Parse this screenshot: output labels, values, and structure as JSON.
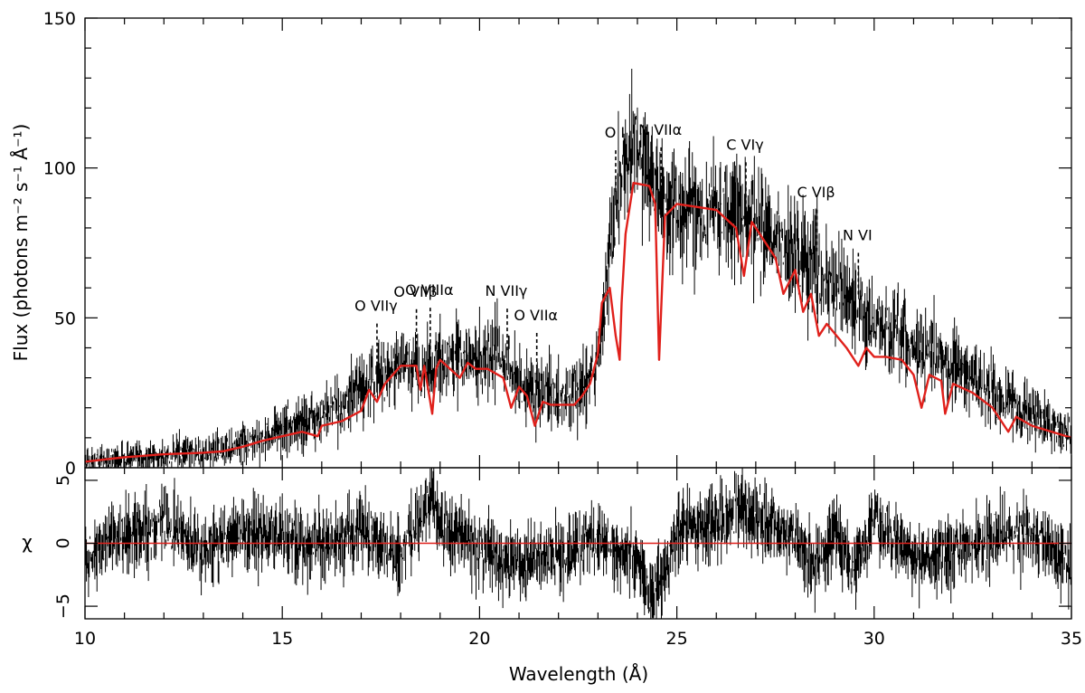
{
  "chart_data": {
    "type": "line",
    "panels": [
      {
        "name": "spectrum",
        "ylabel": "Flux (photons m⁻² s⁻¹ Å⁻¹)",
        "ylim": [
          0,
          150
        ],
        "yticks": [
          0,
          50,
          100,
          150
        ],
        "ytick_labels": [
          "0",
          "50",
          "100",
          "150"
        ],
        "series": [
          {
            "role": "data",
            "color": "#000000",
            "x": [
              10,
              10.5,
              11,
              11.5,
              12,
              12.5,
              13,
              13.5,
              14,
              14.5,
              15,
              15.5,
              16,
              16.5,
              17,
              17.5,
              18,
              18.5,
              19,
              19.5,
              20,
              20.5,
              21,
              21.5,
              22,
              22.5,
              23,
              23.3,
              23.6,
              24,
              24.3,
              24.6,
              25,
              25.5,
              26,
              26.5,
              27,
              27.5,
              28,
              28.5,
              29,
              29.5,
              30,
              30.5,
              31,
              31.5,
              32,
              32.5,
              33,
              33.5,
              34,
              34.5,
              35
            ],
            "values": [
              2,
              3,
              3,
              3.5,
              4,
              4.5,
              5,
              6,
              8,
              10,
              13,
              15,
              17,
              21,
              26,
              30,
              34,
              33,
              36,
              37,
              36,
              39,
              27,
              26,
              23,
              25,
              36,
              72,
              102,
              108,
              100,
              88,
              86,
              87,
              86,
              86,
              80,
              76,
              72,
              68,
              60,
              54,
              48,
              44,
              40,
              38,
              34,
              30,
              25,
              22,
              18,
              14,
              12
            ]
          },
          {
            "role": "model",
            "color": "#e0201b",
            "x": [
              10,
              11,
              12,
              13,
              13.5,
              14,
              14.5,
              15,
              15.5,
              15.9,
              16,
              16.5,
              17,
              17.2,
              17.4,
              17.6,
              17.8,
              18,
              18.4,
              18.5,
              18.6,
              18.8,
              18.9,
              19,
              19.5,
              19.7,
              19.9,
              20.2,
              20.6,
              20.8,
              21,
              21.2,
              21.4,
              21.6,
              21.8,
              22,
              22.4,
              22.6,
              22.8,
              23,
              23.1,
              23.3,
              23.45,
              23.55,
              23.6,
              23.7,
              23.9,
              24.3,
              24.45,
              24.55,
              24.7,
              25,
              25.5,
              26,
              26.5,
              26.7,
              26.9,
              27.3,
              27.5,
              27.7,
              28,
              28.2,
              28.4,
              28.6,
              28.8,
              29.3,
              29.6,
              29.8,
              30,
              30.3,
              30.7,
              31,
              31.2,
              31.4,
              31.7,
              31.8,
              32,
              32.5,
              33,
              33.4,
              33.6,
              34,
              34.5,
              35
            ],
            "values": [
              2,
              3.5,
              4.5,
              5,
              5.5,
              7,
              9,
              10.5,
              12,
              10.5,
              14,
              15.5,
              19,
              26,
              22,
              28,
              31,
              34,
              34,
              26,
              34,
              18,
              33,
              36,
              30,
              35,
              33,
              33,
              30,
              20,
              27,
              24,
              14,
              22,
              21,
              21,
              21,
              24,
              28,
              38,
              55,
              60,
              44,
              36,
              55,
              78,
              95,
              94,
              88,
              36,
              84,
              88,
              87,
              86,
              80,
              64,
              82,
              74,
              70,
              58,
              66,
              52,
              58,
              44,
              48,
              40,
              34,
              40,
              37,
              37,
              36,
              31,
              20,
              31,
              29,
              18,
              28,
              25,
              20,
              12,
              17,
              14,
              12,
              10
            ]
          }
        ]
      },
      {
        "name": "residuals",
        "ylabel": "χ",
        "ylim": [
          -6,
          6
        ],
        "yticks": [
          -5,
          0,
          5
        ],
        "ytick_labels": [
          "−5",
          "0",
          "5"
        ],
        "series": [
          {
            "role": "residuals",
            "color": "#000000",
            "x": [
              10,
              11,
              12,
              13,
              14,
              15,
              16,
              17,
              18,
              18.8,
              19,
              20,
              21,
              22,
              23,
              23.5,
              24,
              24.3,
              24.6,
              25,
              26,
              26.5,
              27,
              28,
              28.5,
              29,
              29.5,
              30,
              31,
              32,
              33,
              34,
              35
            ],
            "values": [
              -1,
              0.5,
              1.5,
              -0.5,
              1,
              0.5,
              -0.5,
              1,
              -1,
              4,
              1.5,
              -0.5,
              -1.5,
              -1,
              0.5,
              -1,
              -1.5,
              -4,
              -3,
              1,
              1.5,
              3,
              2,
              0.5,
              -2,
              1,
              -2,
              1.5,
              -1,
              -0.5,
              0.5,
              1,
              -2
            ]
          }
        ],
        "reference_line": 0
      }
    ],
    "xlabel": "Wavelength (Å)",
    "xlim": [
      10,
      35
    ],
    "xticks": [
      10,
      15,
      20,
      25,
      30,
      35
    ],
    "xtick_labels": [
      "10",
      "15",
      "20",
      "25",
      "30",
      "35"
    ],
    "line_annotations": [
      {
        "label": "O VIIγ",
        "wavelength": 17.4
      },
      {
        "label": "O VIIβ",
        "wavelength": 18.4
      },
      {
        "label": "O VIIIα",
        "wavelength": 18.75
      },
      {
        "label": "N VIIγ",
        "wavelength": 20.7
      },
      {
        "label": "O VIIα",
        "wavelength": 21.45
      },
      {
        "label": "O I",
        "wavelength": 23.45
      },
      {
        "label": "N VIIα",
        "wavelength": 24.6
      },
      {
        "label": "C VIγ",
        "wavelength": 26.75
      },
      {
        "label": "C VIβ",
        "wavelength": 28.55
      },
      {
        "label": "N VI",
        "wavelength": 29.6
      }
    ]
  }
}
